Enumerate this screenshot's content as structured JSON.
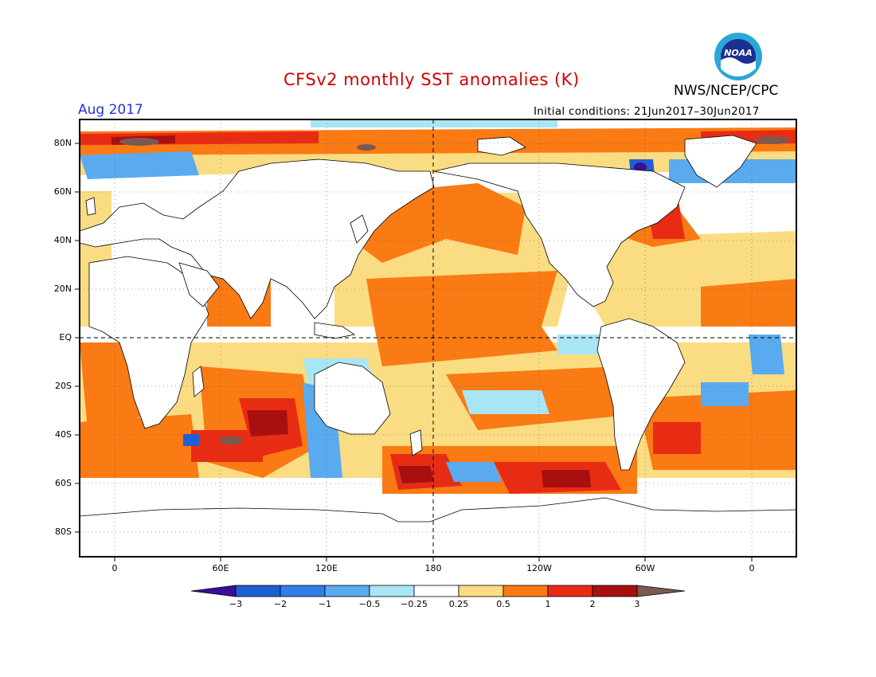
{
  "title": "CFSv2 monthly SST anomalies (K)",
  "forecast_month": "Aug 2017",
  "initial_conditions": "Initial conditions: 21Jun2017–30Jun2017",
  "agency": "NWS/NCEP/CPC",
  "logo_text": "NOAA",
  "lat_labels": [
    "80N",
    "60N",
    "40N",
    "20N",
    "EQ",
    "20S",
    "40S",
    "60S",
    "80S"
  ],
  "lon_labels": [
    "0",
    "60E",
    "120E",
    "180",
    "120W",
    "60W",
    "0"
  ],
  "colorbar": {
    "labels": [
      "−3",
      "−2",
      "−1",
      "−0.5",
      "−0.25",
      "0.25",
      "0.5",
      "1",
      "2",
      "3"
    ],
    "colors": [
      "#3a0f9a",
      "#1f5fd4",
      "#2f7fe6",
      "#5aaaf0",
      "#a8e6f5",
      "#ffffff",
      "#fadc82",
      "#fa7a14",
      "#e82c14",
      "#a81010",
      "#7a5a50"
    ]
  },
  "anomaly_colors": {
    "strong_cold": "#3a0f9a",
    "cold": "#1f5fd4",
    "moderate_cold": "#5aaaf0",
    "weak_cold": "#a8e6f5",
    "neutral": "#ffffff",
    "weak_warm": "#fadc82",
    "warm": "#fa7a14",
    "strong_warm": "#e82c14",
    "very_warm": "#a81010",
    "extreme_warm": "#7a5a50"
  }
}
